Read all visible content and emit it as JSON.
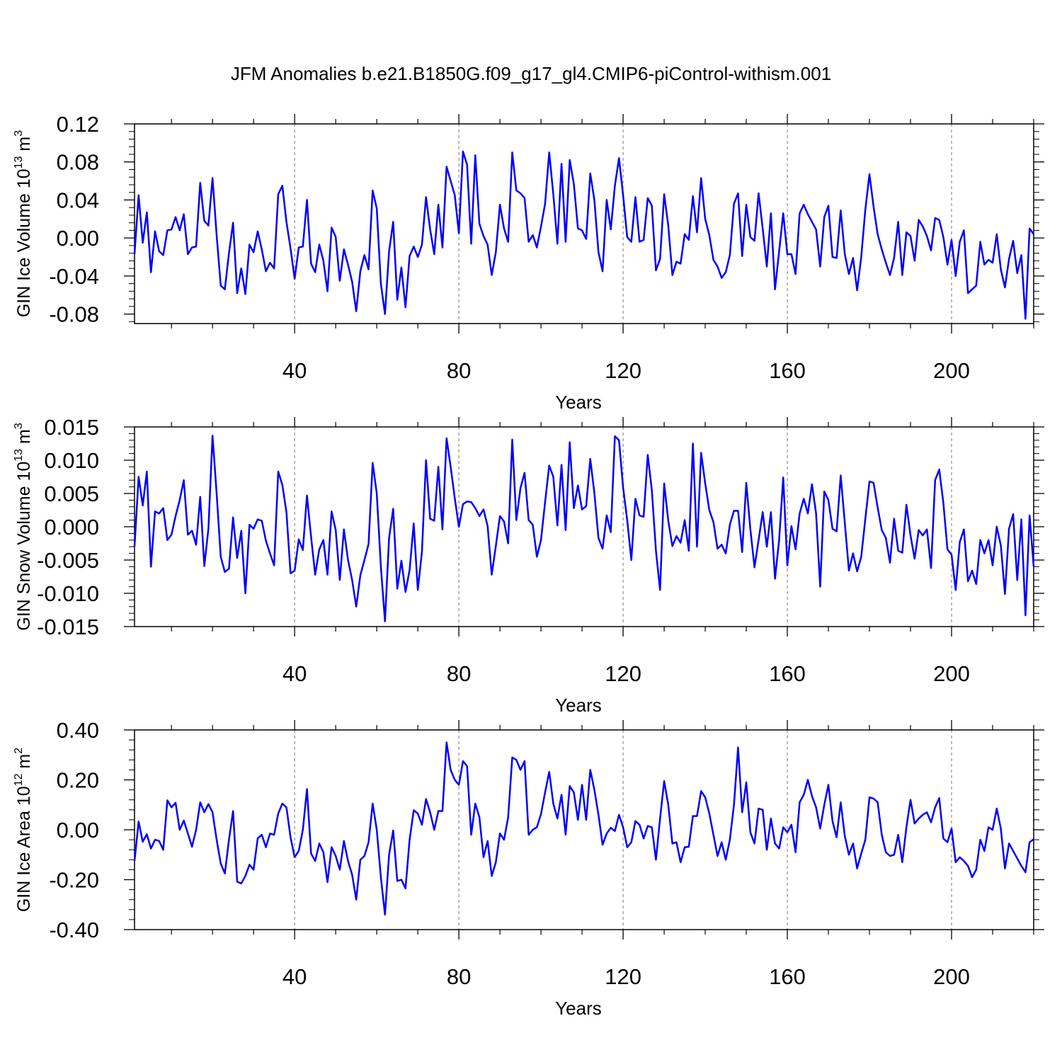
{
  "figure": {
    "title": "JFM Anomalies b.e21.B1850G.f09_g17_gl4.CMIP6-piControl-withism.001",
    "line_color": "#0000ff"
  },
  "chart_data": [
    {
      "type": "line",
      "title": "",
      "ylabel_main": "GIN Ice Volume 10",
      "ylabel_exp": "13",
      "ylabel_unit": " m",
      "ylabel_unit_exp": "3",
      "xlabel": "Years",
      "xlim": [
        1,
        220
      ],
      "ylim": [
        -0.09,
        0.12
      ],
      "xticks": [
        40,
        80,
        120,
        160,
        200
      ],
      "xtick_labels": [
        "40",
        "80",
        "120",
        "160",
        "200"
      ],
      "yticks": [
        -0.08,
        -0.04,
        0.0,
        0.04,
        0.08,
        0.12
      ],
      "ytick_labels": [
        "-0.08",
        "-0.04",
        "0.00",
        "0.04",
        "0.08",
        "0.12"
      ],
      "grid": "dashed vertical at major x ticks",
      "series": [
        {
          "name": "GIN Ice Volume",
          "values": [
            -0.017,
            0.045,
            -0.005,
            0.027,
            -0.036,
            0.007,
            -0.014,
            -0.018,
            0.008,
            0.009,
            0.022,
            0.008,
            0.025,
            -0.017,
            -0.01,
            -0.009,
            0.058,
            0.018,
            0.013,
            0.063,
            0.003,
            -0.05,
            -0.054,
            -0.016,
            0.016,
            -0.058,
            -0.032,
            -0.059,
            -0.007,
            -0.015,
            0.007,
            -0.012,
            -0.035,
            -0.026,
            -0.032,
            0.046,
            0.055,
            0.017,
            -0.011,
            -0.043,
            -0.01,
            -0.009,
            0.04,
            -0.027,
            -0.036,
            -0.007,
            -0.024,
            -0.056,
            0.011,
            0.001,
            -0.045,
            -0.012,
            -0.028,
            -0.046,
            -0.077,
            -0.035,
            -0.018,
            -0.033,
            0.05,
            0.031,
            -0.048,
            -0.08,
            -0.014,
            0.017,
            -0.065,
            -0.031,
            -0.073,
            -0.019,
            -0.009,
            -0.02,
            -0.007,
            0.043,
            0.009,
            -0.017,
            0.035,
            -0.01,
            0.075,
            0.06,
            0.045,
            0.005,
            0.091,
            0.077,
            -0.006,
            0.087,
            0.015,
            0.002,
            -0.007,
            -0.039,
            -0.015,
            0.035,
            0.01,
            -0.004,
            0.09,
            0.05,
            0.047,
            0.042,
            -0.004,
            0.003,
            -0.01,
            0.012,
            0.036,
            0.09,
            0.046,
            -0.006,
            0.078,
            -0.004,
            0.082,
            0.057,
            0.01,
            0.008,
            -0.001,
            0.068,
            0.04,
            -0.015,
            -0.035,
            0.04,
            0.009,
            0.055,
            0.084,
            0.045,
            0.001,
            -0.004,
            0.043,
            -0.004,
            -0.002,
            0.042,
            0.034,
            -0.034,
            -0.022,
            0.046,
            0.013,
            -0.039,
            -0.025,
            -0.027,
            0.004,
            -0.002,
            0.044,
            0.006,
            0.063,
            0.02,
            0.003,
            -0.023,
            -0.03,
            -0.042,
            -0.036,
            -0.018,
            0.036,
            0.047,
            -0.019,
            0.035,
            0.001,
            -0.003,
            0.047,
            0.01,
            -0.03,
            0.026,
            -0.054,
            -0.014,
            0.026,
            -0.017,
            -0.017,
            -0.038,
            0.026,
            0.035,
            0.025,
            0.017,
            0.009,
            -0.03,
            0.022,
            0.034,
            -0.02,
            -0.021,
            0.029,
            -0.017,
            -0.038,
            -0.021,
            -0.055,
            -0.02,
            0.03,
            0.067,
            0.033,
            0.004,
            -0.012,
            -0.026,
            -0.039,
            -0.021,
            0.017,
            -0.039,
            0.006,
            0.002,
            -0.024,
            0.019,
            0.012,
            0.002,
            -0.013,
            0.021,
            0.019,
            0.001,
            -0.028,
            -0.002,
            -0.04,
            -0.004,
            0.008,
            -0.058,
            -0.054,
            -0.05,
            -0.004,
            -0.028,
            -0.023,
            -0.026,
            0.004,
            -0.033,
            -0.052,
            -0.022,
            -0.003,
            -0.037,
            -0.018,
            -0.085,
            0.01,
            0.004
          ]
        }
      ]
    },
    {
      "type": "line",
      "title": "",
      "ylabel_main": "GIN Snow Volume 10",
      "ylabel_exp": "13",
      "ylabel_unit": " m",
      "ylabel_unit_exp": "3",
      "xlabel": "Years",
      "xlim": [
        1,
        220
      ],
      "ylim": [
        -0.015,
        0.015
      ],
      "xticks": [
        40,
        80,
        120,
        160,
        200
      ],
      "xtick_labels": [
        "40",
        "80",
        "120",
        "160",
        "200"
      ],
      "yticks": [
        -0.015,
        -0.01,
        -0.005,
        0.0,
        0.005,
        0.01,
        0.015
      ],
      "ytick_labels": [
        "-0.015",
        "-0.010",
        "-0.005",
        "0.000",
        "0.005",
        "0.010",
        "0.015"
      ],
      "grid": "dashed vertical at major x ticks",
      "series": [
        {
          "name": "GIN Snow Volume",
          "values": [
            -0.003,
            0.0075,
            0.0032,
            0.0083,
            -0.006,
            0.0023,
            0.002,
            0.0028,
            -0.002,
            -0.0012,
            0.0016,
            0.004,
            0.007,
            -0.0012,
            -0.0006,
            -0.0027,
            0.0045,
            -0.0059,
            -0.0003,
            0.0137,
            0.005,
            -0.0045,
            -0.0068,
            -0.0063,
            0.0014,
            -0.0047,
            -0.0006,
            -0.01,
            0.0003,
            -0.0003,
            0.0011,
            0.0009,
            -0.0021,
            -0.004,
            -0.0058,
            0.0083,
            0.0063,
            0.0022,
            -0.007,
            -0.0066,
            -0.0019,
            -0.0035,
            0.0047,
            -0.0015,
            -0.0072,
            -0.0034,
            -0.002,
            -0.0072,
            0.0023,
            -0.0005,
            -0.008,
            -0.0004,
            -0.005,
            -0.008,
            -0.012,
            -0.0073,
            -0.005,
            -0.0026,
            0.0096,
            0.005,
            -0.006,
            -0.0142,
            -0.0017,
            0.0027,
            -0.0093,
            -0.0051,
            -0.0098,
            -0.0065,
            0.0005,
            -0.0095,
            -0.0038,
            0.01,
            0.0012,
            0.0009,
            0.009,
            -0.0004,
            0.0133,
            0.009,
            0.0043,
            0.0,
            0.0034,
            0.0038,
            0.0037,
            0.0028,
            0.0016,
            0.0026,
            0.0001,
            -0.0072,
            -0.0029,
            0.0016,
            0.0008,
            -0.0025,
            0.0131,
            0.001,
            0.0058,
            0.0081,
            0.001,
            0.0003,
            -0.0045,
            -0.002,
            0.0037,
            0.0092,
            0.0075,
            0.0002,
            0.0093,
            -0.0005,
            0.0127,
            0.0028,
            0.0062,
            0.0026,
            0.0031,
            0.0102,
            0.0051,
            -0.0017,
            -0.0033,
            0.0017,
            -0.0008,
            0.0136,
            0.013,
            0.0059,
            0.001,
            -0.005,
            0.0042,
            0.0017,
            0.0015,
            0.0108,
            0.0055,
            -0.0036,
            -0.0095,
            0.0065,
            0.0009,
            -0.0029,
            -0.0014,
            -0.0024,
            0.001,
            -0.0036,
            0.0125,
            -0.003,
            0.0111,
            0.0065,
            0.0025,
            0.0007,
            -0.0033,
            -0.0027,
            -0.004,
            0.0003,
            0.0024,
            0.0024,
            -0.0038,
            0.0066,
            -0.0004,
            -0.0061,
            -0.002,
            0.0022,
            -0.003,
            0.0022,
            -0.0078,
            -0.002,
            0.0074,
            -0.0058,
            0.0001,
            -0.0034,
            0.002,
            0.0042,
            0.002,
            0.0064,
            0.002,
            -0.009,
            0.0053,
            0.004,
            -0.0003,
            -0.0007,
            0.0077,
            0.0006,
            -0.0066,
            -0.004,
            -0.0067,
            -0.0045,
            0.0012,
            0.0068,
            0.0066,
            0.0029,
            -0.0005,
            -0.0017,
            -0.0054,
            0.0012,
            -0.0036,
            -0.0039,
            0.0033,
            -0.0013,
            -0.0048,
            -0.0005,
            -0.0013,
            -0.0004,
            -0.0062,
            0.007,
            0.0086,
            0.0036,
            -0.0034,
            -0.0042,
            -0.0095,
            -0.0023,
            -0.0004,
            -0.0082,
            -0.0066,
            -0.0086,
            -0.002,
            -0.004,
            -0.002,
            -0.0058,
            0.0,
            -0.0028,
            -0.0101,
            -0.0003,
            0.0019,
            -0.008,
            0.0011,
            -0.0133,
            0.0017,
            -0.006
          ]
        }
      ]
    },
    {
      "type": "line",
      "title": "",
      "ylabel_main": "GIN Ice Area 10",
      "ylabel_exp": "12",
      "ylabel_unit": " m",
      "ylabel_unit_exp": "2",
      "xlabel": "Years",
      "xlim": [
        1,
        220
      ],
      "ylim": [
        -0.4,
        0.4
      ],
      "xticks": [
        40,
        80,
        120,
        160,
        200
      ],
      "xtick_labels": [
        "40",
        "80",
        "120",
        "160",
        "200"
      ],
      "yticks": [
        -0.4,
        -0.2,
        0.0,
        0.2,
        0.4
      ],
      "ytick_labels": [
        "-0.40",
        "-0.20",
        "0.00",
        "0.20",
        "0.40"
      ],
      "grid": "dashed vertical at major x ticks",
      "series": [
        {
          "name": "GIN Ice Area",
          "values": [
            -0.125,
            0.033,
            -0.048,
            -0.018,
            -0.075,
            -0.04,
            -0.045,
            -0.08,
            0.118,
            0.09,
            0.108,
            0.0,
            0.037,
            -0.015,
            -0.068,
            0.0,
            0.11,
            0.07,
            0.103,
            0.07,
            -0.04,
            -0.135,
            -0.175,
            -0.04,
            0.075,
            -0.208,
            -0.215,
            -0.185,
            -0.14,
            -0.16,
            -0.035,
            -0.02,
            -0.07,
            -0.015,
            -0.02,
            0.065,
            0.105,
            0.09,
            -0.03,
            -0.11,
            -0.085,
            0.0,
            0.163,
            -0.095,
            -0.125,
            -0.055,
            -0.09,
            -0.21,
            -0.07,
            -0.105,
            -0.16,
            -0.045,
            -0.125,
            -0.18,
            -0.28,
            -0.12,
            -0.105,
            -0.05,
            0.105,
            0.0,
            -0.19,
            -0.34,
            -0.1,
            -0.003,
            -0.205,
            -0.2,
            -0.235,
            -0.04,
            0.078,
            0.065,
            0.02,
            0.123,
            0.07,
            0.0,
            0.075,
            0.075,
            0.35,
            0.24,
            0.2,
            0.18,
            0.275,
            0.255,
            -0.02,
            0.105,
            0.05,
            -0.11,
            -0.045,
            -0.185,
            -0.13,
            -0.015,
            -0.04,
            0.05,
            0.29,
            0.28,
            0.24,
            0.275,
            -0.02,
            0.0,
            0.01,
            0.063,
            0.15,
            0.232,
            0.105,
            0.045,
            0.14,
            -0.02,
            0.175,
            0.15,
            0.04,
            0.18,
            0.04,
            0.24,
            0.16,
            0.06,
            -0.06,
            -0.015,
            0.008,
            -0.005,
            0.06,
            0.01,
            -0.07,
            -0.05,
            0.035,
            0.02,
            -0.035,
            0.015,
            0.01,
            -0.12,
            0.045,
            0.195,
            0.1,
            -0.055,
            -0.05,
            -0.13,
            -0.07,
            -0.068,
            0.055,
            0.055,
            0.155,
            0.13,
            0.065,
            -0.02,
            -0.105,
            -0.05,
            -0.12,
            -0.04,
            0.1,
            0.33,
            0.07,
            0.19,
            -0.01,
            -0.055,
            0.085,
            0.08,
            -0.08,
            0.045,
            -0.055,
            -0.075,
            0.01,
            -0.01,
            0.02,
            -0.09,
            0.11,
            0.14,
            0.2,
            0.135,
            0.09,
            0.005,
            0.1,
            0.18,
            0.035,
            -0.03,
            0.11,
            -0.025,
            -0.1,
            -0.055,
            -0.155,
            -0.095,
            -0.04,
            0.13,
            0.125,
            0.11,
            -0.02,
            -0.09,
            -0.105,
            -0.1,
            -0.02,
            -0.13,
            0.01,
            0.12,
            0.025,
            0.045,
            0.06,
            0.07,
            0.03,
            0.09,
            0.127,
            -0.035,
            -0.05,
            0.005,
            -0.13,
            -0.11,
            -0.125,
            -0.145,
            -0.19,
            -0.16,
            -0.04,
            -0.085,
            0.01,
            0.0,
            0.085,
            0.005,
            -0.155,
            -0.055,
            -0.085,
            -0.115,
            -0.145,
            -0.17,
            -0.05,
            -0.038
          ]
        }
      ]
    }
  ]
}
